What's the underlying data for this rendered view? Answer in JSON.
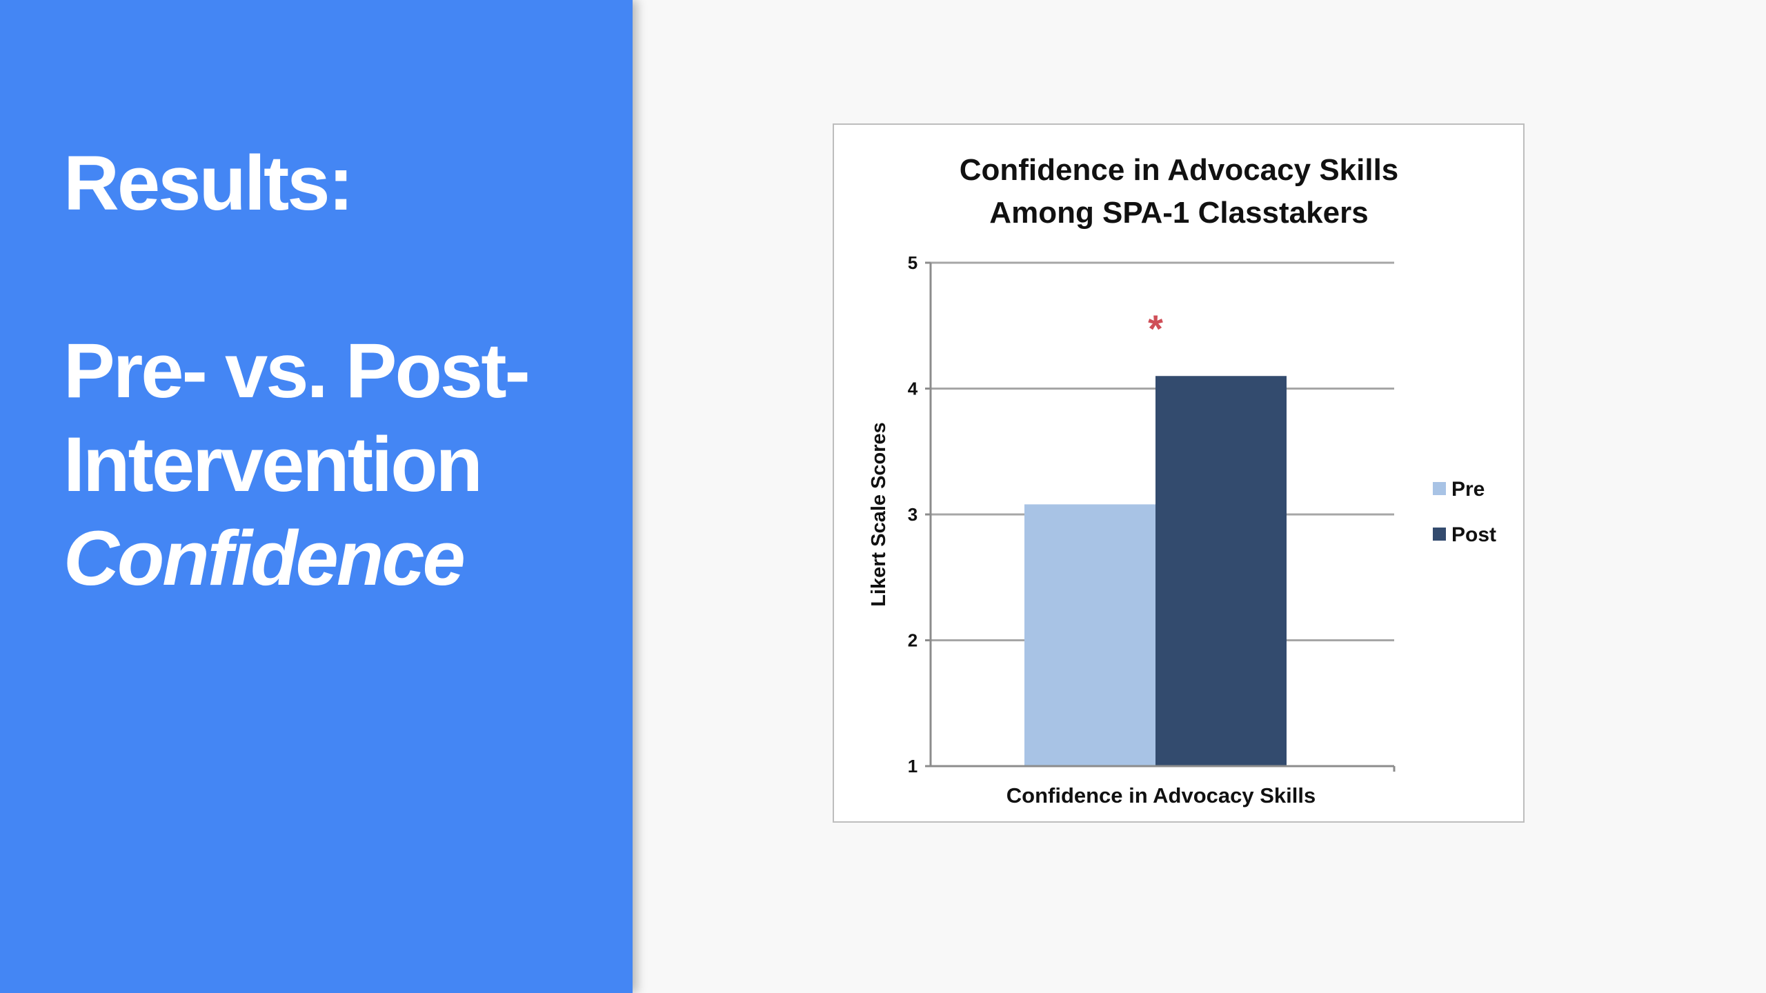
{
  "slide": {
    "heading_line1": "Results:",
    "heading_line2": "Pre- vs. Post-",
    "heading_line3": "Intervention",
    "heading_line4": "Confidence"
  },
  "colors": {
    "panel_blue": "#4486f4",
    "pre_bar": "#a8c3e5",
    "post_bar": "#334b6e",
    "significance_marker": "#cf4e57"
  },
  "chart_data": {
    "type": "bar",
    "title_line1": "Confidence in Advocacy Skills",
    "title_line2": "Among SPA-1 Classtakers",
    "xlabel": "Confidence in Advocacy Skills",
    "ylabel": "Likert Scale Scores",
    "categories": [
      "Confidence in Advocacy Skills"
    ],
    "series": [
      {
        "name": "Pre",
        "values": [
          3.08
        ]
      },
      {
        "name": "Post",
        "values": [
          4.1
        ]
      }
    ],
    "ylim": [
      1,
      5
    ],
    "yticks": [
      "1",
      "2",
      "3",
      "4",
      "5"
    ],
    "grid": true,
    "legend": "right",
    "annotation": "*"
  }
}
